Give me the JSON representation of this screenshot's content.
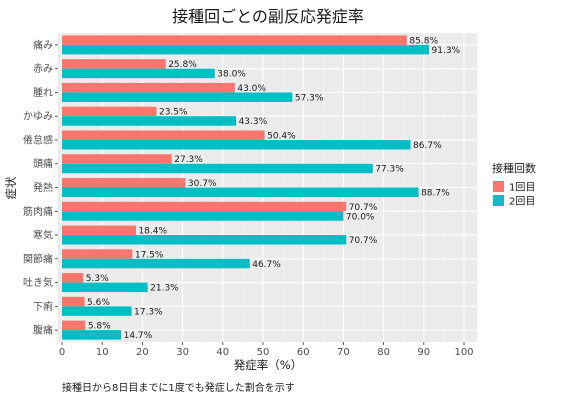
{
  "chart_data": {
    "type": "bar",
    "orientation": "horizontal",
    "title": "接種回ごとの副反応発症率",
    "xlabel": "発症率（%）",
    "ylabel": "症状",
    "caption": "接種日から8日目までに1度でも発症した割合を示す",
    "legend_title": "接種回数",
    "legend_position": "right",
    "xlim": [
      0,
      100
    ],
    "xticks": [
      "0",
      "10",
      "20",
      "30",
      "40",
      "50",
      "60",
      "70",
      "80",
      "90",
      "100"
    ],
    "grid": true,
    "categories": [
      "痛み",
      "赤み",
      "腫れ",
      "かゆみ",
      "倦怠感",
      "頭痛",
      "発熱",
      "筋肉痛",
      "寒気",
      "関節痛",
      "吐き気",
      "下痢",
      "腹痛"
    ],
    "series": [
      {
        "name": "1回目",
        "color": "#F8766D",
        "values": [
          85.8,
          25.8,
          43.0,
          23.5,
          50.4,
          27.3,
          30.7,
          70.7,
          18.4,
          17.5,
          5.3,
          5.6,
          5.8
        ],
        "labels": [
          "85.8%",
          "25.8%",
          "43.0%",
          "23.5%",
          "50.4%",
          "27.3%",
          "30.7%",
          "70.7%",
          "18.4%",
          "17.5%",
          "5.3%",
          "5.6%",
          "5.8%"
        ]
      },
      {
        "name": "2回目",
        "color": "#00BFC4",
        "values": [
          91.3,
          38.0,
          57.3,
          43.3,
          86.7,
          77.3,
          88.7,
          70.0,
          70.7,
          46.7,
          21.3,
          17.3,
          14.7
        ],
        "labels": [
          "91.3%",
          "38.0%",
          "57.3%",
          "43.3%",
          "86.7%",
          "77.3%",
          "88.7%",
          "70.0%",
          "70.7%",
          "46.7%",
          "21.3%",
          "17.3%",
          "14.7%"
        ]
      }
    ]
  }
}
